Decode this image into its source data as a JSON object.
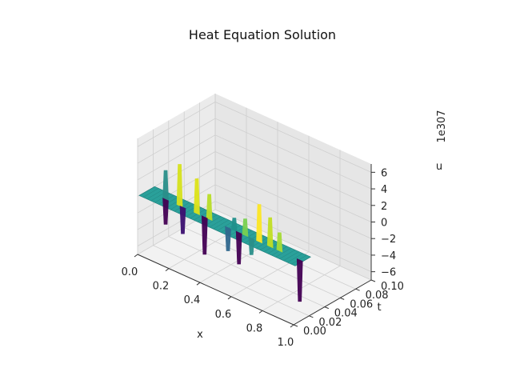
{
  "chart_data": {
    "type": "surface3d",
    "title": "Heat Equation Solution",
    "xlabel": "x",
    "ylabel": "t",
    "zlabel": "u",
    "z_offset_label": "1e307",
    "x_ticks": [
      "0.0",
      "0.2",
      "0.4",
      "0.6",
      "0.8",
      "1.0"
    ],
    "t_ticks": [
      "0.00",
      "0.02",
      "0.04",
      "0.06",
      "0.08",
      "0.10"
    ],
    "z_ticks": [
      "6",
      "4",
      "2",
      "0",
      "−2",
      "−4",
      "−6"
    ],
    "xlim": [
      0,
      1
    ],
    "tlim": [
      0,
      0.1
    ],
    "zlim": [
      -7,
      7
    ],
    "colormap": "viridis",
    "colors": {
      "low": "#440154",
      "mid": "#21918c",
      "high": "#fde725",
      "pane": "#ebebeb"
    },
    "spikes": [
      {
        "x": 0.12,
        "u": 3.5,
        "color": "#2a8f8a"
      },
      {
        "x": 0.12,
        "u": -3.0,
        "color": "#440154"
      },
      {
        "x": 0.21,
        "u": 5.0,
        "color": "#d6e21d"
      },
      {
        "x": 0.23,
        "u": -3.2,
        "color": "#3b0f70"
      },
      {
        "x": 0.32,
        "u": 4.2,
        "color": "#dde318"
      },
      {
        "x": 0.37,
        "u": -4.5,
        "color": "#440154"
      },
      {
        "x": 0.4,
        "u": 3.0,
        "color": "#b9de28"
      },
      {
        "x": 0.52,
        "u": -2.8,
        "color": "#31688e"
      },
      {
        "x": 0.56,
        "u": 1.5,
        "color": "#21918c"
      },
      {
        "x": 0.59,
        "u": -3.8,
        "color": "#440154"
      },
      {
        "x": 0.63,
        "u": 2.0,
        "color": "#7ad151"
      },
      {
        "x": 0.67,
        "u": -2.0,
        "color": "#2a8f8a"
      },
      {
        "x": 0.72,
        "u": 4.5,
        "color": "#fde725"
      },
      {
        "x": 0.79,
        "u": 3.5,
        "color": "#c2df23"
      },
      {
        "x": 0.85,
        "u": 2.2,
        "color": "#a5db36"
      },
      {
        "x": 0.98,
        "u": -5.0,
        "color": "#440154"
      }
    ]
  }
}
